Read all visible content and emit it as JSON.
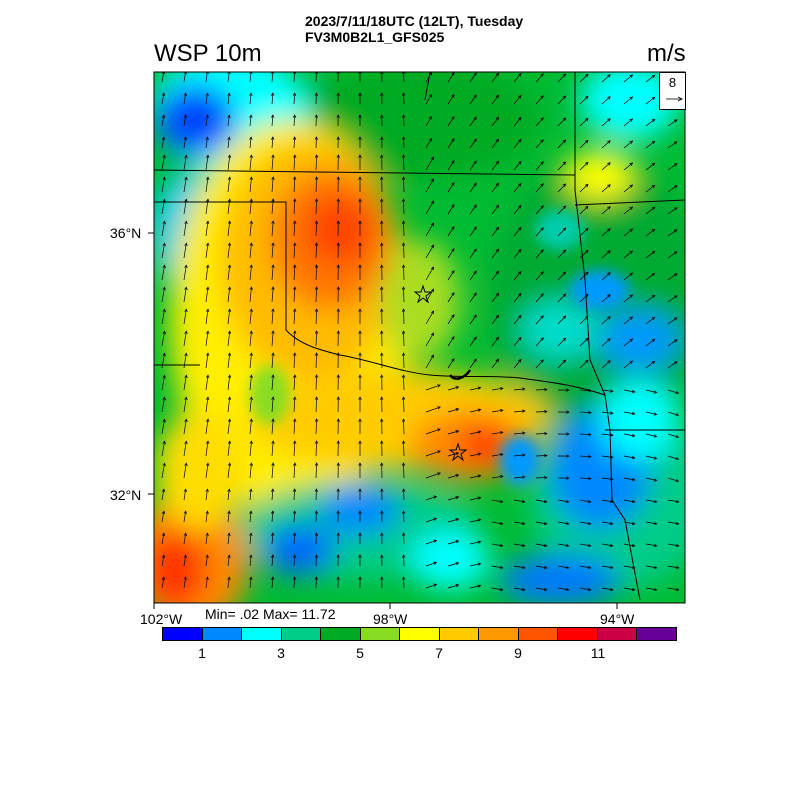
{
  "header": {
    "datetime_line": "2023/7/11/18UTC (12LT), Tuesday",
    "model_line": "FV3M0B2L1_GFS025",
    "variable": "WSP 10m",
    "units": "m/s"
  },
  "map": {
    "lat_labels": [
      "36°N",
      "32°N"
    ],
    "lon_labels": [
      "102°W",
      "98°W",
      "94°W"
    ],
    "reference_vector": "8",
    "field_description": "10 m wind speed over Oklahoma / Texas region",
    "markers": [
      "star-marker",
      "star-marker"
    ]
  },
  "stats": {
    "text": "Min= .02 Max= 11.72"
  },
  "colorbar": {
    "colors": [
      "#0000ff",
      "#0088ff",
      "#00ffff",
      "#00cc88",
      "#00aa22",
      "#88dd22",
      "#ffff00",
      "#ffcc00",
      "#ff9900",
      "#ff5500",
      "#ff0000",
      "#cc0044",
      "#660099"
    ],
    "labels": [
      "1",
      "3",
      "5",
      "7",
      "9",
      "11"
    ]
  }
}
